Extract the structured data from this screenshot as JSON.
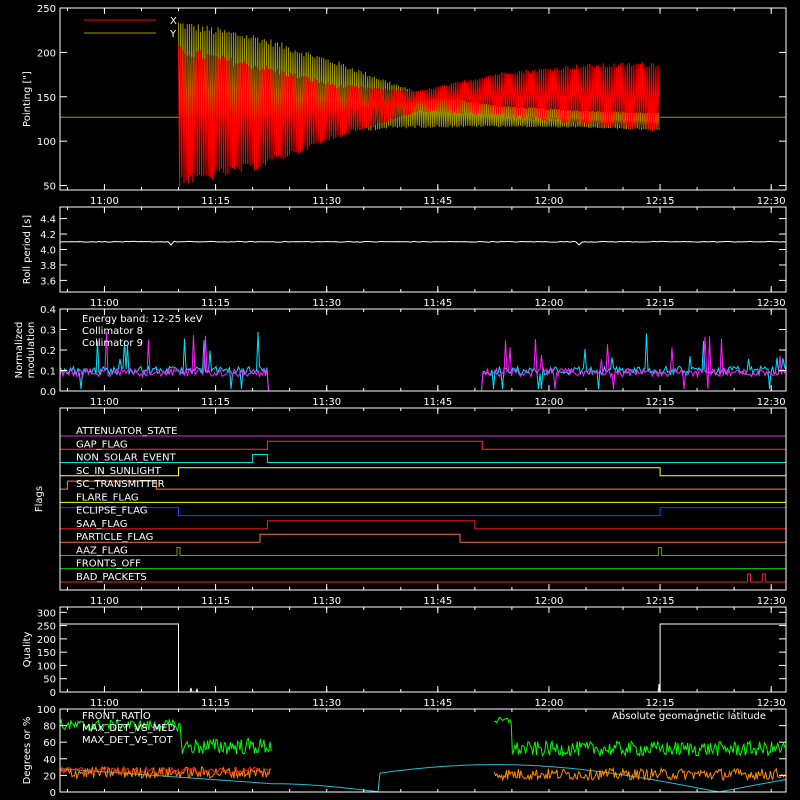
{
  "chart_data": [
    {
      "type": "line",
      "ylabel": "Pointing [\"]",
      "ylim": [
        45,
        250
      ],
      "yticks": [
        50,
        100,
        150,
        200,
        250
      ],
      "xticks": [
        "11:00",
        "11:15",
        "11:30",
        "11:45",
        "12:00",
        "12:15",
        "12:30"
      ],
      "legend_position": "top-left",
      "series": [
        {
          "name": "X",
          "color": "#ff0000",
          "active_center": [
            128,
            128,
            134,
            145,
            153,
            152,
            150
          ],
          "active_amplitude": [
            80,
            60,
            30,
            12,
            25,
            35,
            40
          ]
        },
        {
          "name": "Y",
          "color": "#a09a00",
          "active_center": [
            165,
            160,
            150,
            135,
            128,
            125,
            122
          ],
          "active_amplitude": [
            72,
            60,
            40,
            20,
            12,
            10,
            10
          ]
        }
      ],
      "baseline_value": 127,
      "active_range": [
        "11:10",
        "12:15"
      ]
    },
    {
      "type": "line",
      "ylabel": "Roll period [s]",
      "ylim": [
        3.45,
        4.55
      ],
      "yticks": [
        3.6,
        3.8,
        4.0,
        4.2,
        4.4
      ],
      "xticks": [
        "11:00",
        "11:15",
        "11:30",
        "11:45",
        "12:00",
        "12:15",
        "12:30"
      ],
      "series": [
        {
          "color": "#ffffff",
          "value": 4.1
        }
      ]
    },
    {
      "type": "line",
      "ylabel_line1": "Normalized",
      "ylabel_line2": "modulation",
      "ylim": [
        0.0,
        0.4
      ],
      "yticks": [
        0.0,
        0.1,
        0.2,
        0.3,
        0.4
      ],
      "xticks": [
        "11:00",
        "11:15",
        "11:30",
        "11:45",
        "12:00",
        "12:15",
        "12:30"
      ],
      "annotation": "Energy band: 12-25 keV",
      "series": [
        {
          "name": "Collimator 8",
          "color": "#00e0ff",
          "level": 0.1
        },
        {
          "name": "Collimator 9",
          "color": "#ff20ff",
          "level": 0.09
        }
      ],
      "gap_range": [
        "11:22",
        "11:51"
      ]
    },
    {
      "type": "line",
      "ylabel": "Flags",
      "xticks": [
        "11:00",
        "11:15",
        "11:30",
        "11:45",
        "12:00",
        "12:15",
        "12:30"
      ],
      "flags": [
        {
          "name": "ATTENUATOR_STATE",
          "color": "#cc33cc",
          "steps": []
        },
        {
          "name": "GAP_FLAG",
          "color": "#ff3030",
          "steps": [
            [
              "11:22",
              "11:51"
            ]
          ]
        },
        {
          "name": "NON_SOLAR_EVENT",
          "color": "#00e0e0",
          "steps": [
            [
              "11:20",
              "11:22"
            ]
          ]
        },
        {
          "name": "SC_IN_SUNLIGHT",
          "color": "#ffff40",
          "steps": [
            [
              "11:10",
              "12:15"
            ]
          ]
        },
        {
          "name": "SC_TRANSMITTER",
          "color": "#ff8040",
          "steps": [
            [
              "10:55",
              "11:07"
            ]
          ]
        },
        {
          "name": "FLARE_FLAG",
          "color": "#ffff00",
          "steps": []
        },
        {
          "name": "ECLIPSE_FLAG",
          "color": "#2040ff",
          "steps": [
            [
              "10:54",
              "11:10"
            ],
            [
              "12:15",
              "12:32"
            ]
          ]
        },
        {
          "name": "SAA_FLAG",
          "color": "#ff2020",
          "steps": [
            [
              "11:22",
              "11:50"
            ]
          ]
        },
        {
          "name": "PARTICLE_FLAG",
          "color": "#ff7030",
          "steps": [
            [
              "11:21",
              "11:48"
            ]
          ]
        },
        {
          "name": "AAZ_FLAG",
          "color": "#909000",
          "steps": [
            [
              "11:10",
              "11:10"
            ],
            [
              "12:15",
              "12:15"
            ]
          ]
        },
        {
          "name": "FRONTS_OFF",
          "color": "#20e020",
          "steps": []
        },
        {
          "name": "BAD_PACKETS",
          "color": "#ff2020",
          "steps": [
            [
              "12:27",
              "12:27"
            ],
            [
              "12:29",
              "12:29"
            ]
          ]
        }
      ]
    },
    {
      "type": "line",
      "ylabel": "Quality",
      "ylim": [
        0,
        320
      ],
      "yticks": [
        0,
        50,
        100,
        150,
        200,
        250,
        300
      ],
      "xticks": [
        "11:00",
        "11:15",
        "11:30",
        "11:45",
        "12:00",
        "12:15",
        "12:30"
      ],
      "series": [
        {
          "color": "#ffffff",
          "high_value": 256,
          "high_ranges": [
            [
              "10:54",
              "11:10"
            ],
            [
              "12:15",
              "12:32"
            ]
          ]
        }
      ]
    },
    {
      "type": "line",
      "ylabel": "Degrees or %",
      "ylim": [
        0,
        100
      ],
      "yticks": [
        0,
        20,
        40,
        60,
        80,
        100
      ],
      "series": [
        {
          "name": "FRONT_RATIO",
          "color": "#00ff00"
        },
        {
          "name": "MAX_DET_VS_MED",
          "color": "#ff2020"
        },
        {
          "name": "MAX_DET_VS_TOT",
          "color": "#ff8c00"
        },
        {
          "name": "Absolute geomagnetic latitude",
          "color": "#20c0d0"
        }
      ]
    }
  ]
}
